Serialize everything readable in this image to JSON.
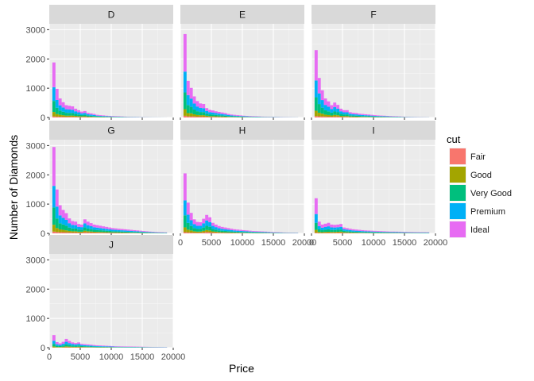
{
  "chart_data": {
    "type": "histogram",
    "xlabel": "Price",
    "ylabel": "Number of Diamonds",
    "xlim": [
      0,
      20000
    ],
    "ylim": [
      0,
      3200
    ],
    "x_ticks": [
      0,
      5000,
      10000,
      15000,
      20000
    ],
    "y_ticks": [
      0,
      1000,
      2000,
      3000
    ],
    "x_tick_labels": [
      "0",
      "5000",
      "10000",
      "15000",
      "20000"
    ],
    "y_tick_labels": [
      "0",
      "1000",
      "2000",
      "3000"
    ],
    "grid": true,
    "stacked": true,
    "bin_width": 500,
    "bin_starts": [
      500,
      1000,
      1500,
      2000,
      2500,
      3000,
      3500,
      4000,
      4500,
      5000,
      5500,
      6000,
      6500,
      7000,
      7500,
      8000,
      8500,
      9000,
      9500,
      10000,
      10500,
      11000,
      11500,
      12000,
      12500,
      13000,
      13500,
      14000,
      14500,
      15000,
      15500,
      16000,
      16500,
      17000,
      17500,
      18000,
      18500
    ],
    "legend": {
      "title": "cut",
      "position": "right",
      "entries": [
        {
          "name": "Fair",
          "color": "#F8766D"
        },
        {
          "name": "Good",
          "color": "#A3A500"
        },
        {
          "name": "Very Good",
          "color": "#00BF7D"
        },
        {
          "name": "Premium",
          "color": "#00B0F6"
        },
        {
          "name": "Ideal",
          "color": "#E76BF3"
        }
      ]
    },
    "facets": [
      {
        "label": "D",
        "totals": [
          1880,
          980,
          650,
          520,
          420,
          400,
          380,
          300,
          250,
          200,
          220,
          160,
          140,
          120,
          90,
          80,
          70,
          60,
          55,
          50,
          45,
          40,
          35,
          30,
          25,
          22,
          20,
          18,
          15,
          12,
          10,
          8,
          6,
          5,
          4,
          3,
          2
        ]
      },
      {
        "label": "E",
        "totals": [
          2850,
          1250,
          1010,
          720,
          560,
          480,
          460,
          320,
          260,
          240,
          210,
          190,
          170,
          150,
          120,
          100,
          90,
          80,
          70,
          60,
          55,
          50,
          45,
          40,
          35,
          30,
          28,
          26,
          24,
          20,
          18,
          16,
          14,
          12,
          10,
          8,
          6
        ]
      },
      {
        "label": "F",
        "totals": [
          2300,
          1350,
          930,
          650,
          550,
          420,
          510,
          430,
          300,
          250,
          250,
          180,
          160,
          150,
          130,
          120,
          110,
          100,
          90,
          80,
          70,
          65,
          60,
          55,
          50,
          45,
          40,
          35,
          30,
          25,
          20,
          18,
          16,
          14,
          12,
          10,
          8
        ]
      },
      {
        "label": "G",
        "totals": [
          2950,
          1500,
          960,
          800,
          690,
          510,
          420,
          400,
          320,
          300,
          480,
          400,
          350,
          300,
          280,
          260,
          240,
          220,
          200,
          180,
          170,
          160,
          150,
          140,
          130,
          120,
          110,
          100,
          90,
          80,
          70,
          60,
          55,
          50,
          45,
          40,
          35
        ]
      },
      {
        "label": "H",
        "totals": [
          2050,
          1050,
          700,
          480,
          390,
          380,
          500,
          630,
          550,
          360,
          300,
          250,
          220,
          200,
          180,
          160,
          140,
          130,
          120,
          110,
          100,
          90,
          80,
          75,
          70,
          65,
          60,
          55,
          50,
          45,
          40,
          35,
          30,
          28,
          26,
          24,
          22
        ]
      },
      {
        "label": "I",
        "totals": [
          1200,
          400,
          300,
          330,
          360,
          300,
          290,
          300,
          320,
          200,
          180,
          160,
          140,
          130,
          120,
          110,
          100,
          95,
          90,
          85,
          80,
          75,
          70,
          65,
          60,
          60,
          58,
          56,
          54,
          52,
          50,
          48,
          46,
          44,
          42,
          40,
          38
        ]
      },
      {
        "label": "J",
        "totals": [
          430,
          190,
          150,
          200,
          300,
          230,
          180,
          160,
          180,
          130,
          120,
          110,
          100,
          90,
          80,
          75,
          70,
          65,
          60,
          55,
          50,
          48,
          46,
          44,
          42,
          40,
          38,
          36,
          34,
          32,
          30,
          28,
          26,
          24,
          22,
          20,
          18
        ]
      }
    ],
    "cut_shares": {
      "Fair": [
        0.02,
        0.03,
        0.04,
        0.05,
        0.05,
        0.06,
        0.06,
        0.07,
        0.07,
        0.08,
        0.08,
        0.08,
        0.08,
        0.08,
        0.08,
        0.08,
        0.08,
        0.08,
        0.08,
        0.08,
        0.08,
        0.08,
        0.08,
        0.08,
        0.08,
        0.08,
        0.08,
        0.08,
        0.08,
        0.08,
        0.08,
        0.08,
        0.08,
        0.08,
        0.08,
        0.08,
        0.08
      ],
      "Good": [
        0.08,
        0.09,
        0.1,
        0.1,
        0.1,
        0.1,
        0.11,
        0.11,
        0.11,
        0.11,
        0.11,
        0.1,
        0.1,
        0.1,
        0.1,
        0.1,
        0.1,
        0.1,
        0.1,
        0.1,
        0.1,
        0.1,
        0.1,
        0.1,
        0.1,
        0.1,
        0.1,
        0.1,
        0.1,
        0.1,
        0.1,
        0.1,
        0.1,
        0.1,
        0.1,
        0.1,
        0.1
      ],
      "Very Good": [
        0.2,
        0.22,
        0.22,
        0.23,
        0.23,
        0.23,
        0.23,
        0.23,
        0.23,
        0.23,
        0.23,
        0.23,
        0.23,
        0.23,
        0.23,
        0.23,
        0.23,
        0.23,
        0.23,
        0.23,
        0.23,
        0.23,
        0.23,
        0.23,
        0.23,
        0.23,
        0.23,
        0.23,
        0.23,
        0.23,
        0.23,
        0.23,
        0.23,
        0.23,
        0.23,
        0.23,
        0.23
      ],
      "Premium": [
        0.25,
        0.27,
        0.28,
        0.28,
        0.29,
        0.29,
        0.29,
        0.29,
        0.29,
        0.29,
        0.29,
        0.29,
        0.29,
        0.29,
        0.29,
        0.29,
        0.29,
        0.29,
        0.29,
        0.29,
        0.29,
        0.29,
        0.29,
        0.29,
        0.29,
        0.29,
        0.29,
        0.29,
        0.29,
        0.29,
        0.29,
        0.29,
        0.29,
        0.29,
        0.29,
        0.29,
        0.29
      ],
      "Ideal": [
        0.45,
        0.39,
        0.36,
        0.34,
        0.33,
        0.32,
        0.31,
        0.3,
        0.3,
        0.29,
        0.29,
        0.3,
        0.3,
        0.3,
        0.3,
        0.3,
        0.3,
        0.3,
        0.3,
        0.3,
        0.3,
        0.3,
        0.3,
        0.3,
        0.3,
        0.3,
        0.3,
        0.3,
        0.3,
        0.3,
        0.3,
        0.3,
        0.3,
        0.3,
        0.3,
        0.3,
        0.3
      ]
    }
  }
}
